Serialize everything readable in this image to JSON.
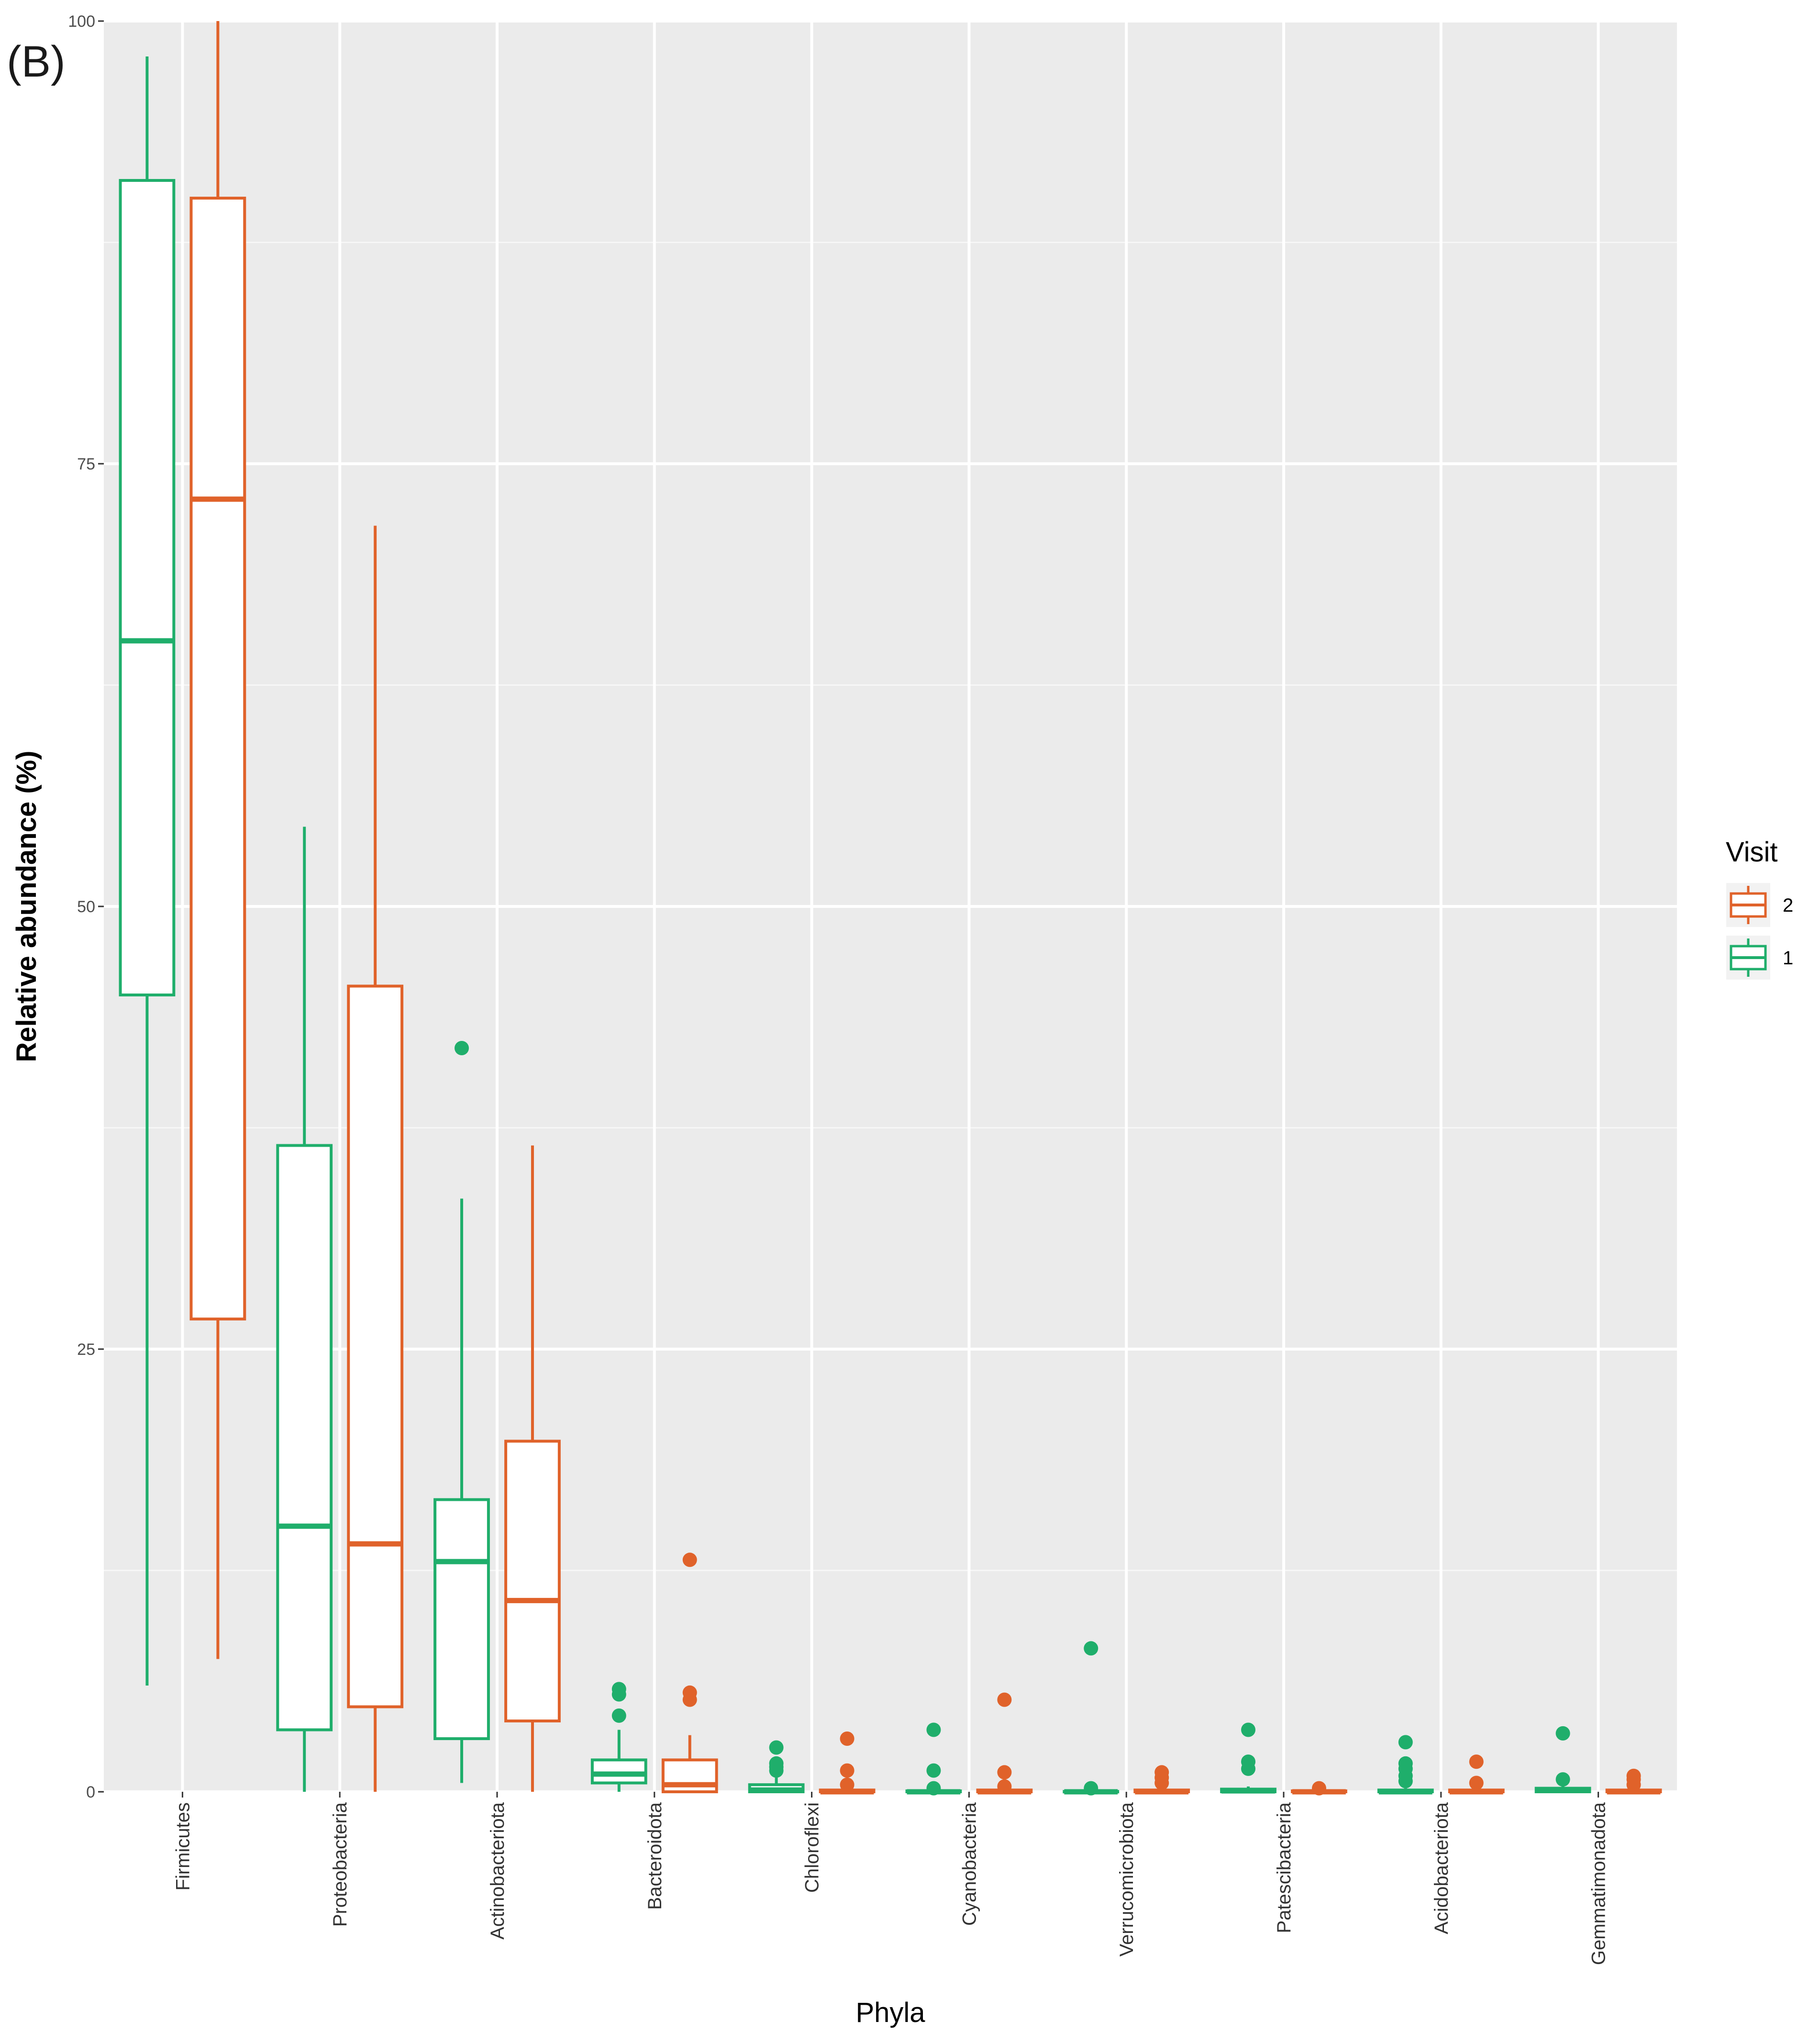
{
  "panel_label": "(B)",
  "chart_data": {
    "type": "boxplot",
    "xlabel": "Phyla",
    "ylabel": "Relative abundance (%)",
    "ylim": [
      0,
      100
    ],
    "yticks": [
      0,
      25,
      50,
      75,
      100
    ],
    "grid": true,
    "legend": {
      "title": "Visit",
      "position": "right",
      "entries": [
        {
          "label": "2",
          "color": "#e0622a"
        },
        {
          "label": "1",
          "color": "#1fae6b"
        }
      ]
    },
    "categories": [
      "Firmicutes",
      "Proteobacteria",
      "Actinobacteriota",
      "Bacteroidota",
      "Chloroflexi",
      "Cyanobacteria",
      "Verrucomicrobiota",
      "Patescibacteria",
      "Acidobacteriota",
      "Gemmatimonadota"
    ],
    "series": [
      {
        "name": "1",
        "color": "#1fae6b",
        "boxes": [
          {
            "whisker_low": 6,
            "q1": 45,
            "median": 65,
            "q3": 91,
            "whisker_high": 98,
            "outliers": []
          },
          {
            "whisker_low": 0,
            "q1": 3.5,
            "median": 15,
            "q3": 36.5,
            "whisker_high": 54.5,
            "outliers": []
          },
          {
            "whisker_low": 0.5,
            "q1": 3,
            "median": 13,
            "q3": 16.5,
            "whisker_high": 33.5,
            "outliers": [
              42
            ]
          },
          {
            "whisker_low": 0,
            "q1": 0.5,
            "median": 1,
            "q3": 1.8,
            "whisker_high": 3.5,
            "outliers": [
              4.3,
              5.5,
              5.8
            ]
          },
          {
            "whisker_low": 0,
            "q1": 0,
            "median": 0.1,
            "q3": 0.4,
            "whisker_high": 0.9,
            "outliers": [
              1.2,
              1.4,
              1.6,
              2.5
            ]
          },
          {
            "whisker_low": 0,
            "q1": 0,
            "median": 0,
            "q3": 0.05,
            "whisker_high": 0.1,
            "outliers": [
              0.2,
              1.2,
              3.5
            ]
          },
          {
            "whisker_low": 0,
            "q1": 0,
            "median": 0,
            "q3": 0.02,
            "whisker_high": 0.05,
            "outliers": [
              0.2,
              8.1
            ]
          },
          {
            "whisker_low": 0,
            "q1": 0,
            "median": 0.05,
            "q3": 0.15,
            "whisker_high": 0.3,
            "outliers": [
              1.3,
              1.7,
              3.5
            ]
          },
          {
            "whisker_low": 0,
            "q1": 0,
            "median": 0,
            "q3": 0.1,
            "whisker_high": 0.2,
            "outliers": [
              0.6,
              0.9,
              1.3,
              1.6,
              2.8
            ]
          },
          {
            "whisker_low": 0,
            "q1": 0,
            "median": 0.1,
            "q3": 0.2,
            "whisker_high": 0.4,
            "outliers": [
              0.7,
              3.3
            ]
          }
        ]
      },
      {
        "name": "2",
        "color": "#e0622a",
        "boxes": [
          {
            "whisker_low": 7.5,
            "q1": 26.7,
            "median": 73,
            "q3": 90,
            "whisker_high": 100,
            "outliers": []
          },
          {
            "whisker_low": 0,
            "q1": 4.8,
            "median": 14,
            "q3": 45.5,
            "whisker_high": 71.5,
            "outliers": []
          },
          {
            "whisker_low": 0,
            "q1": 4,
            "median": 10.8,
            "q3": 19.8,
            "whisker_high": 36.5,
            "outliers": []
          },
          {
            "whisker_low": 0,
            "q1": 0,
            "median": 0.4,
            "q3": 1.8,
            "whisker_high": 3.2,
            "outliers": [
              5.2,
              5.6,
              13.1
            ]
          },
          {
            "whisker_low": 0,
            "q1": 0,
            "median": 0,
            "q3": 0.1,
            "whisker_high": 0.2,
            "outliers": [
              0.4,
              1.2,
              3
            ]
          },
          {
            "whisker_low": 0,
            "q1": 0,
            "median": 0,
            "q3": 0.1,
            "whisker_high": 0.2,
            "outliers": [
              0.3,
              1.1,
              5.2
            ]
          },
          {
            "whisker_low": 0,
            "q1": 0,
            "median": 0,
            "q3": 0.1,
            "whisker_high": 0.2,
            "outliers": [
              0.5,
              0.8,
              1.1
            ]
          },
          {
            "whisker_low": 0,
            "q1": 0,
            "median": 0,
            "q3": 0.05,
            "whisker_high": 0.1,
            "outliers": [
              0.2
            ]
          },
          {
            "whisker_low": 0,
            "q1": 0,
            "median": 0,
            "q3": 0.1,
            "whisker_high": 0.2,
            "outliers": [
              0.5,
              1.7
            ]
          },
          {
            "whisker_low": 0,
            "q1": 0,
            "median": 0,
            "q3": 0.1,
            "whisker_high": 0.2,
            "outliers": [
              0.4,
              0.7,
              0.9
            ]
          }
        ]
      }
    ]
  }
}
